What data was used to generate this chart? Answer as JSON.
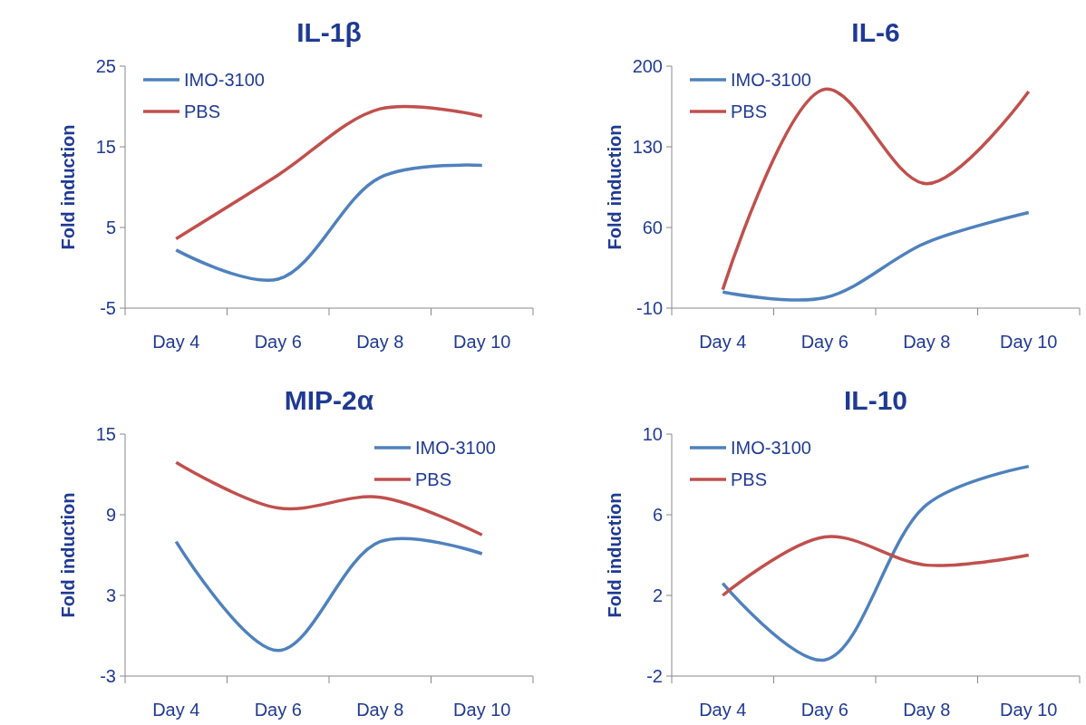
{
  "chart_data": [
    {
      "type": "line",
      "title": "IL-1β",
      "ylabel": "Fold induction",
      "categories": [
        "Day 4",
        "Day 6",
        "Day 8",
        "Day 10"
      ],
      "ylim": [
        -5,
        25
      ],
      "yticks": [
        -5,
        5,
        15,
        25
      ],
      "legend": "top left",
      "grid": false,
      "series": [
        {
          "name": "IMO-3100",
          "color": "#4f81bd",
          "values": [
            2.2,
            -1.4,
            11.2,
            12.7
          ]
        },
        {
          "name": "PBS",
          "color": "#c0504d",
          "values": [
            3.6,
            11.5,
            19.7,
            18.8
          ]
        }
      ]
    },
    {
      "type": "line",
      "title": "IL-6",
      "ylabel": "Fold induction",
      "categories": [
        "Day 4",
        "Day 6",
        "Day 8",
        "Day 10"
      ],
      "ylim": [
        -10,
        200
      ],
      "yticks": [
        -10,
        60,
        130,
        200
      ],
      "legend": "top left",
      "grid": false,
      "series": [
        {
          "name": "IMO-3100",
          "color": "#4f81bd",
          "values": [
            4,
            -1,
            47,
            73
          ]
        },
        {
          "name": "PBS",
          "color": "#c0504d",
          "values": [
            6,
            180,
            98,
            178
          ]
        }
      ]
    },
    {
      "type": "line",
      "title": "MIP-2α",
      "ylabel": "Fold induction",
      "categories": [
        "Day 4",
        "Day 6",
        "Day 8",
        "Day 10"
      ],
      "ylim": [
        -3,
        15
      ],
      "yticks": [
        -3,
        3,
        9,
        15
      ],
      "legend": "top right",
      "grid": false,
      "series": [
        {
          "name": "IMO-3100",
          "color": "#4f81bd",
          "values": [
            7,
            -1.1,
            7,
            6.1
          ]
        },
        {
          "name": "PBS",
          "color": "#c0504d",
          "values": [
            12.9,
            9.5,
            10.3,
            7.5
          ]
        }
      ]
    },
    {
      "type": "line",
      "title": "IL-10",
      "ylabel": "Fold induction",
      "categories": [
        "Day 4",
        "Day 6",
        "Day 8",
        "Day 10"
      ],
      "ylim": [
        -2,
        10
      ],
      "yticks": [
        -2,
        2,
        6,
        10
      ],
      "legend": "top left",
      "grid": false,
      "series": [
        {
          "name": "IMO-3100",
          "color": "#4f81bd",
          "values": [
            2.6,
            -1.2,
            6.5,
            8.4
          ]
        },
        {
          "name": "PBS",
          "color": "#c0504d",
          "values": [
            2,
            4.9,
            3.5,
            4
          ]
        }
      ]
    }
  ]
}
